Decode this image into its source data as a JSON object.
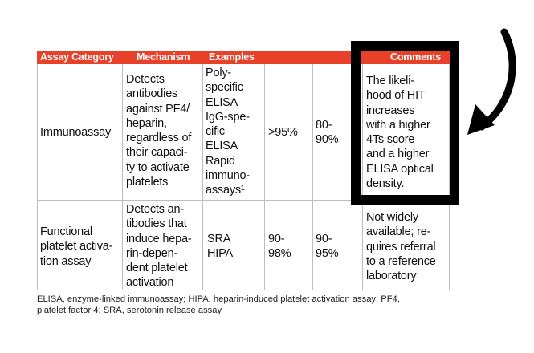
{
  "table": {
    "headers": [
      "Assay Category",
      "Mechanism",
      "Examples",
      "",
      "",
      "Comments"
    ],
    "rows": [
      {
        "category": "Immunoassay",
        "mechanism": "Detects\nantibodies\nagainst PF4/\nheparin,\nregardless of\ntheir capaci-\nty to activate\nplatelets",
        "examples": "Poly-\nspecific\nELISA\nIgG-spe-\ncific\nELISA\nRapid\nimmuno-\nassays¹",
        "sensitivity": ">95%",
        "specificity": "80-\n90%",
        "comments": "The likeli-\nhood of HIT\nincreases\nwith a higher\n4Ts score\nand a higher\nELISA optical\ndensity."
      },
      {
        "category": "Functional\nplatelet activa-\ntion assay",
        "mechanism": "Detects an-\ntibodies that\ninduce hepa-\nrin-depen-\ndent platelet\nactivation",
        "examples": "SRA\nHIPA",
        "sensitivity": "90-\n98%",
        "specificity": "90-\n95%",
        "comments": "Not widely\navailable; re-\nquires referral\nto a reference\nlaboratory"
      }
    ],
    "footnote": "ELISA, enzyme-linked immunoassay; HIPA, heparin-induced platelet activation assay; PF4,\nplatelet factor 4; SRA, serotonin release assay"
  },
  "colors": {
    "header_bg": "#e8412a",
    "highlight_border": "#000000",
    "grid": "#bdbdbd"
  },
  "annotations": {
    "highlight": "black-box-around-comments-cell",
    "arrow": "curved-arrow-icon"
  }
}
